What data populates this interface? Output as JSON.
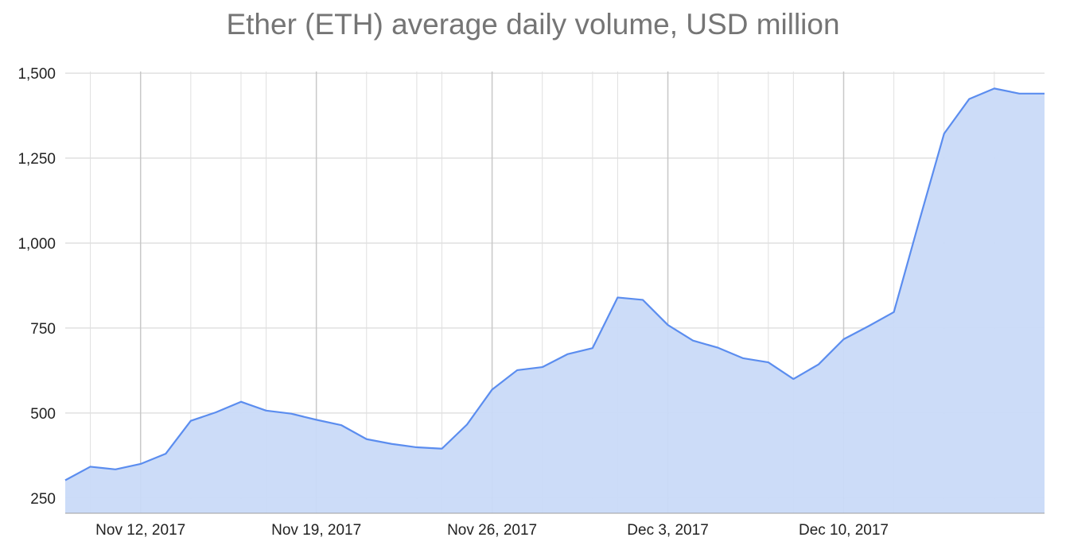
{
  "chart_data": {
    "type": "area",
    "title": "Ether (ETH) average daily volume, USD million",
    "xlabel": "",
    "ylabel": "",
    "ylim": [
      205,
      1505
    ],
    "yticks": [
      250,
      500,
      750,
      1000,
      1250,
      1500
    ],
    "ytick_labels": [
      "250",
      "500",
      "750",
      "1,000",
      "1,250",
      "1,500"
    ],
    "x_start": "2017-11-09",
    "x_end": "2017-12-18",
    "xticks": [
      "2017-11-12",
      "2017-11-19",
      "2017-11-26",
      "2017-12-03",
      "2017-12-10"
    ],
    "xtick_labels": [
      "Nov 12, 2017",
      "Nov 19, 2017",
      "Nov 26, 2017",
      "Dec 3, 2017",
      "Dec 10, 2017"
    ],
    "grid": true,
    "legend": "none",
    "colors": {
      "line": "#5b8def",
      "fill": "#c9daf8",
      "grid": "#e0e0e0",
      "major_grid": "#c8c8c8",
      "title": "#757575"
    },
    "series": [
      {
        "x": [
          "2017-11-09",
          "2017-11-10",
          "2017-11-11",
          "2017-11-12",
          "2017-11-13",
          "2017-11-14",
          "2017-11-15",
          "2017-11-16",
          "2017-11-17",
          "2017-11-18",
          "2017-11-19",
          "2017-11-20",
          "2017-11-21",
          "2017-11-22",
          "2017-11-23",
          "2017-11-24",
          "2017-11-25",
          "2017-11-26",
          "2017-11-27",
          "2017-11-28",
          "2017-11-29",
          "2017-11-30",
          "2017-12-01",
          "2017-12-02",
          "2017-12-03",
          "2017-12-04",
          "2017-12-05",
          "2017-12-06",
          "2017-12-07",
          "2017-12-08",
          "2017-12-09",
          "2017-12-10",
          "2017-12-11",
          "2017-12-12",
          "2017-12-13",
          "2017-12-14",
          "2017-12-15",
          "2017-12-16",
          "2017-12-17",
          "2017-12-18"
        ],
        "values": [
          302,
          342,
          334,
          350,
          380,
          477,
          502,
          533,
          507,
          498,
          480,
          464,
          423,
          409,
          399,
          395,
          466,
          569,
          626,
          635,
          673,
          691,
          840,
          833,
          759,
          713,
          692,
          661,
          649,
          600,
          643,
          717,
          756,
          797,
          1062,
          1322,
          1424,
          1455,
          1440,
          1440
        ]
      }
    ]
  }
}
